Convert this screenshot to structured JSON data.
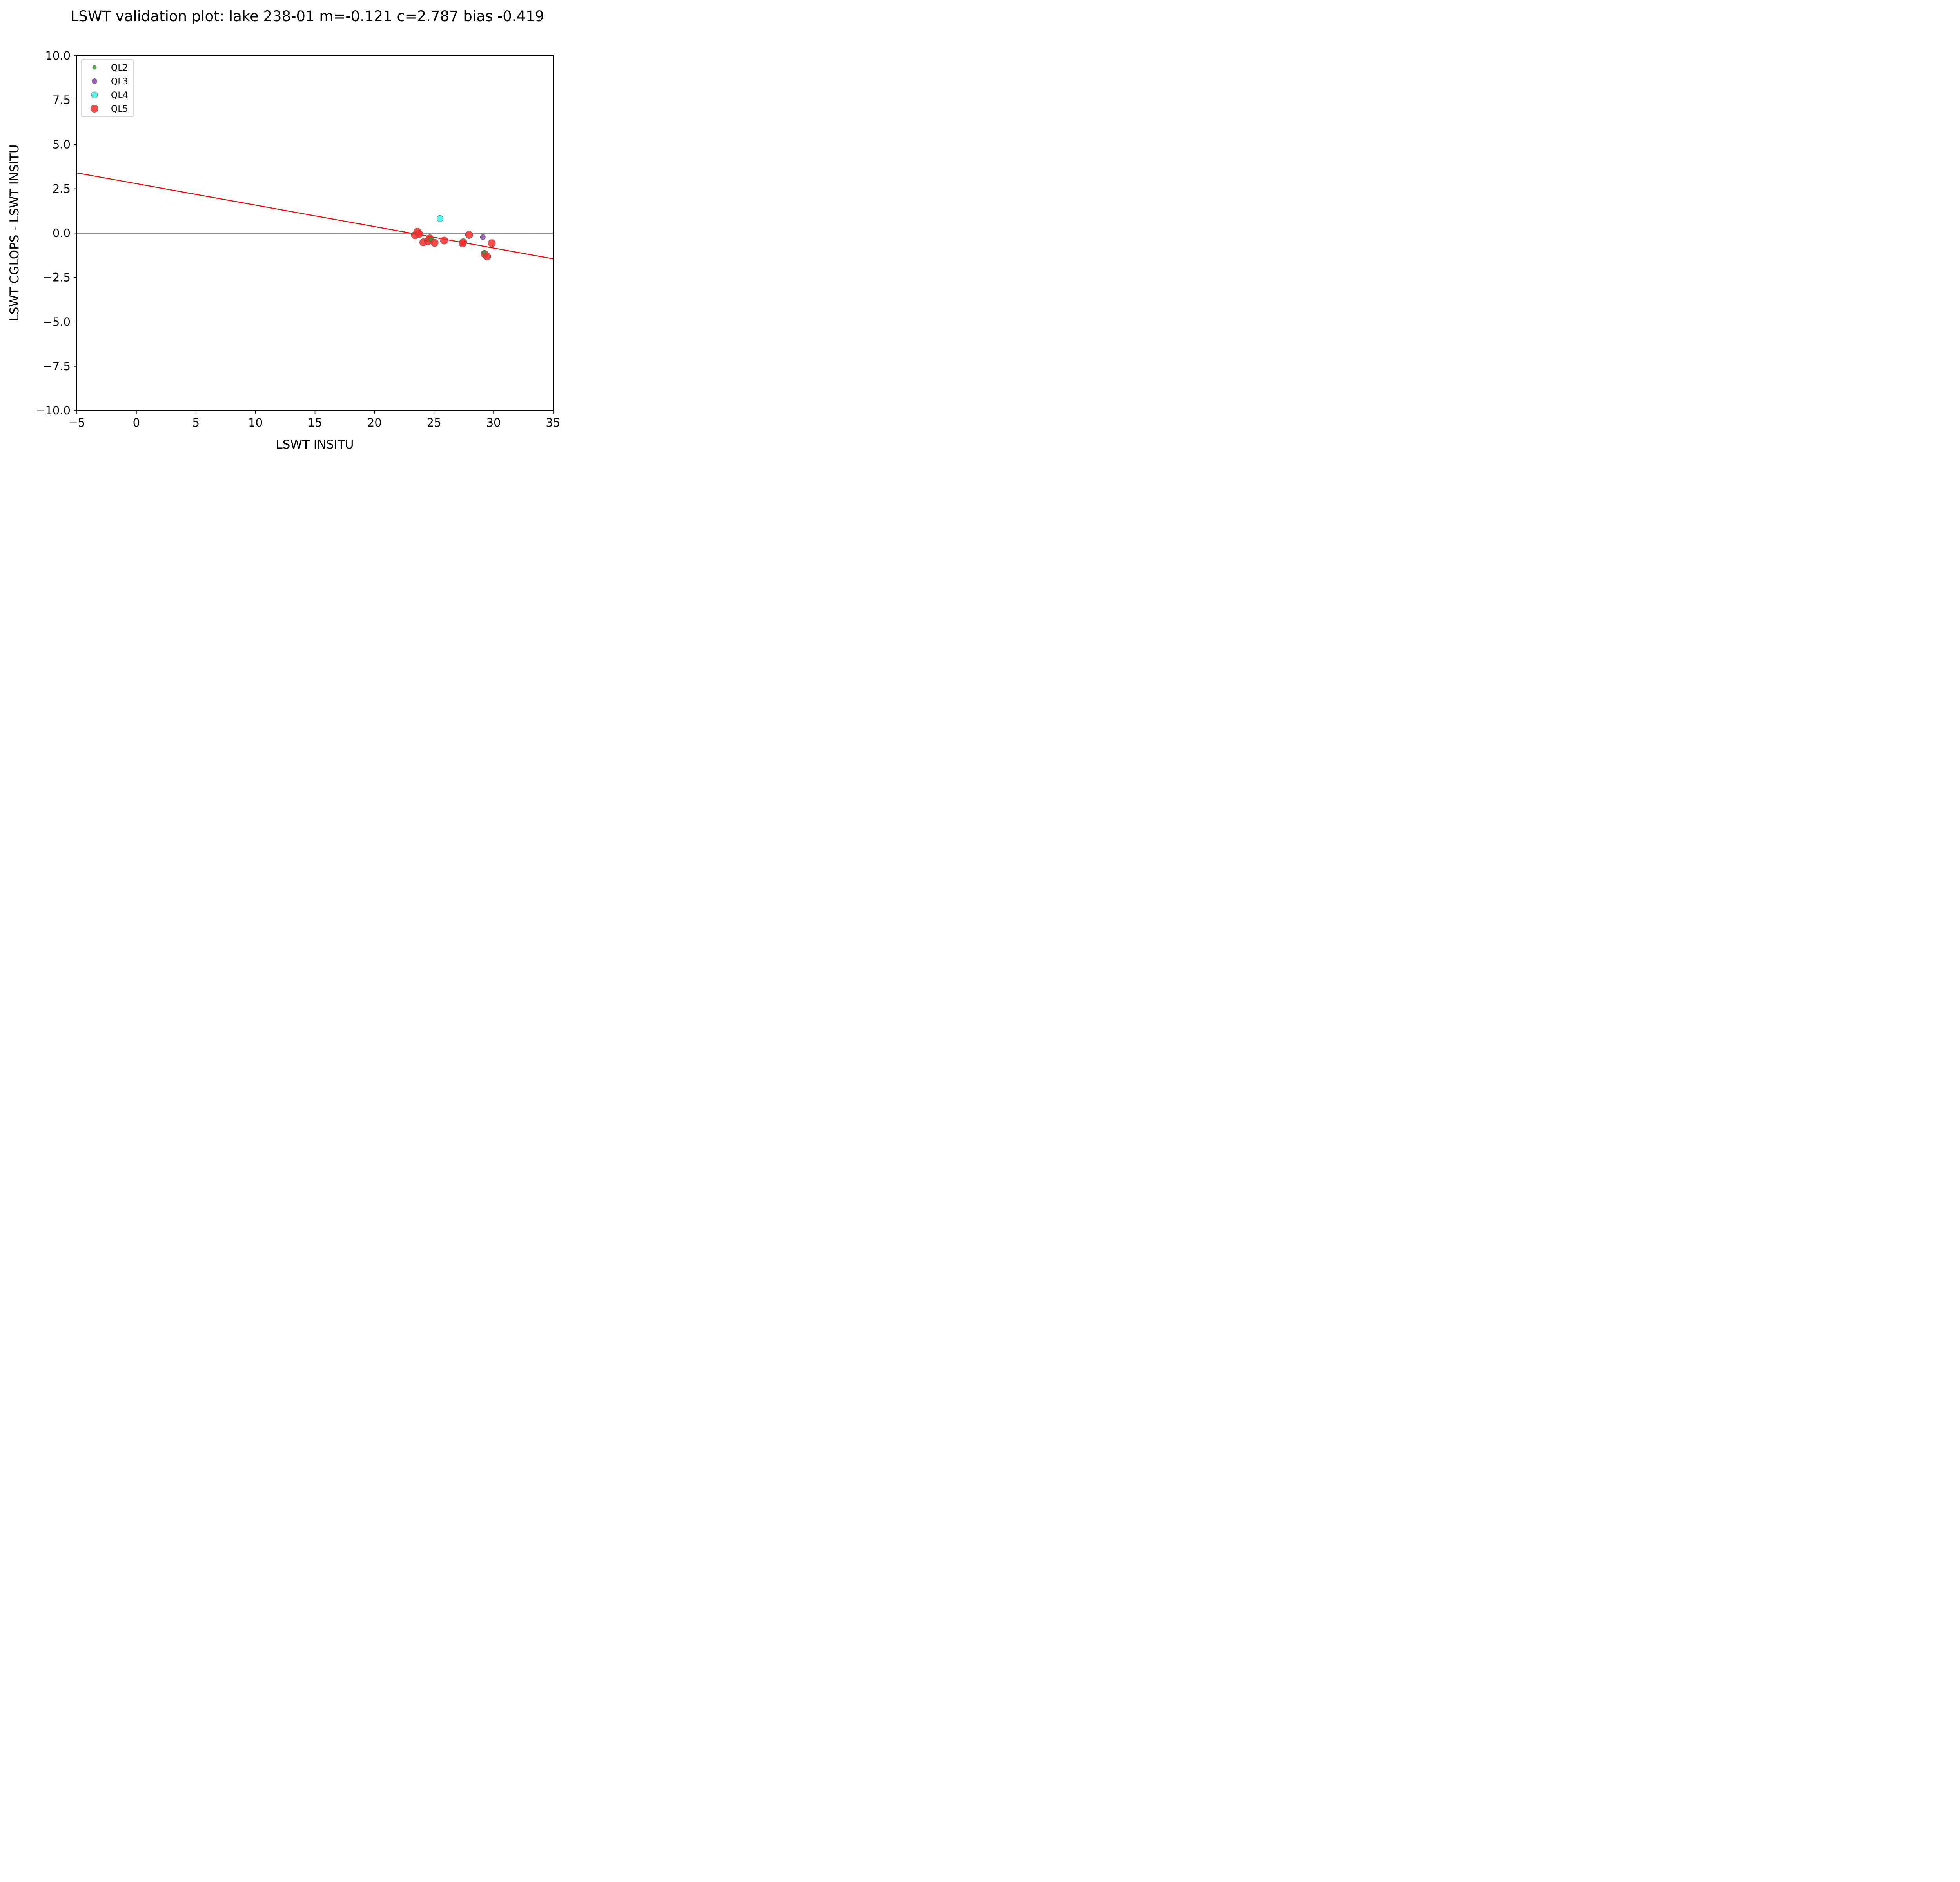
{
  "chart_data": {
    "type": "scatter",
    "title": "LSWT validation plot: lake 238-01 m=-0.121 c=2.787 bias -0.419",
    "xlabel": "LSWT INSITU",
    "ylabel": "LSWT CGLOPS - LSWT INSITU",
    "xlim": [
      -5,
      35
    ],
    "ylim": [
      -10,
      10
    ],
    "xticks": [
      -5,
      0,
      5,
      10,
      15,
      20,
      25,
      30,
      35
    ],
    "xtick_labels": [
      "−5",
      "0",
      "5",
      "10",
      "15",
      "20",
      "25",
      "30",
      "35"
    ],
    "yticks": [
      -10,
      -7.5,
      -5,
      -2.5,
      0,
      2.5,
      5,
      7.5,
      10
    ],
    "ytick_labels": [
      "−10.0",
      "−7.5",
      "−5.0",
      "−2.5",
      "0.0",
      "2.5",
      "5.0",
      "7.5",
      "10.0"
    ],
    "grid": false,
    "legend_position": "top-left",
    "zero_line": {
      "y": 0,
      "color": "#666666"
    },
    "fit_line": {
      "slope": -0.121,
      "intercept": 2.787,
      "color": "#ff0000"
    },
    "series": [
      {
        "name": "QL2",
        "color": "#2ca02c",
        "marker_size": "small",
        "points": [
          {
            "x": 29.2,
            "y": -1.1
          },
          {
            "x": 24.7,
            "y": -0.35
          }
        ]
      },
      {
        "name": "QL3",
        "color": "#8e44ad",
        "marker_size": "medium",
        "points": [
          {
            "x": 29.1,
            "y": -0.22
          }
        ]
      },
      {
        "name": "QL4",
        "color": "#33ffee",
        "marker_size": "large",
        "points": [
          {
            "x": 25.5,
            "y": 0.82
          }
        ]
      },
      {
        "name": "QL5",
        "color": "#ff2a2a",
        "marker_size": "xlarge",
        "points": [
          {
            "x": 23.4,
            "y": -0.12
          },
          {
            "x": 23.6,
            "y": 0.08
          },
          {
            "x": 23.75,
            "y": -0.05
          },
          {
            "x": 24.1,
            "y": -0.52
          },
          {
            "x": 24.5,
            "y": -0.45
          },
          {
            "x": 24.65,
            "y": -0.3
          },
          {
            "x": 25.05,
            "y": -0.55
          },
          {
            "x": 25.85,
            "y": -0.42
          },
          {
            "x": 27.4,
            "y": -0.58
          },
          {
            "x": 27.45,
            "y": -0.52
          },
          {
            "x": 27.95,
            "y": -0.1
          },
          {
            "x": 29.25,
            "y": -1.18
          },
          {
            "x": 29.45,
            "y": -1.32
          },
          {
            "x": 29.85,
            "y": -0.57
          }
        ]
      }
    ]
  }
}
